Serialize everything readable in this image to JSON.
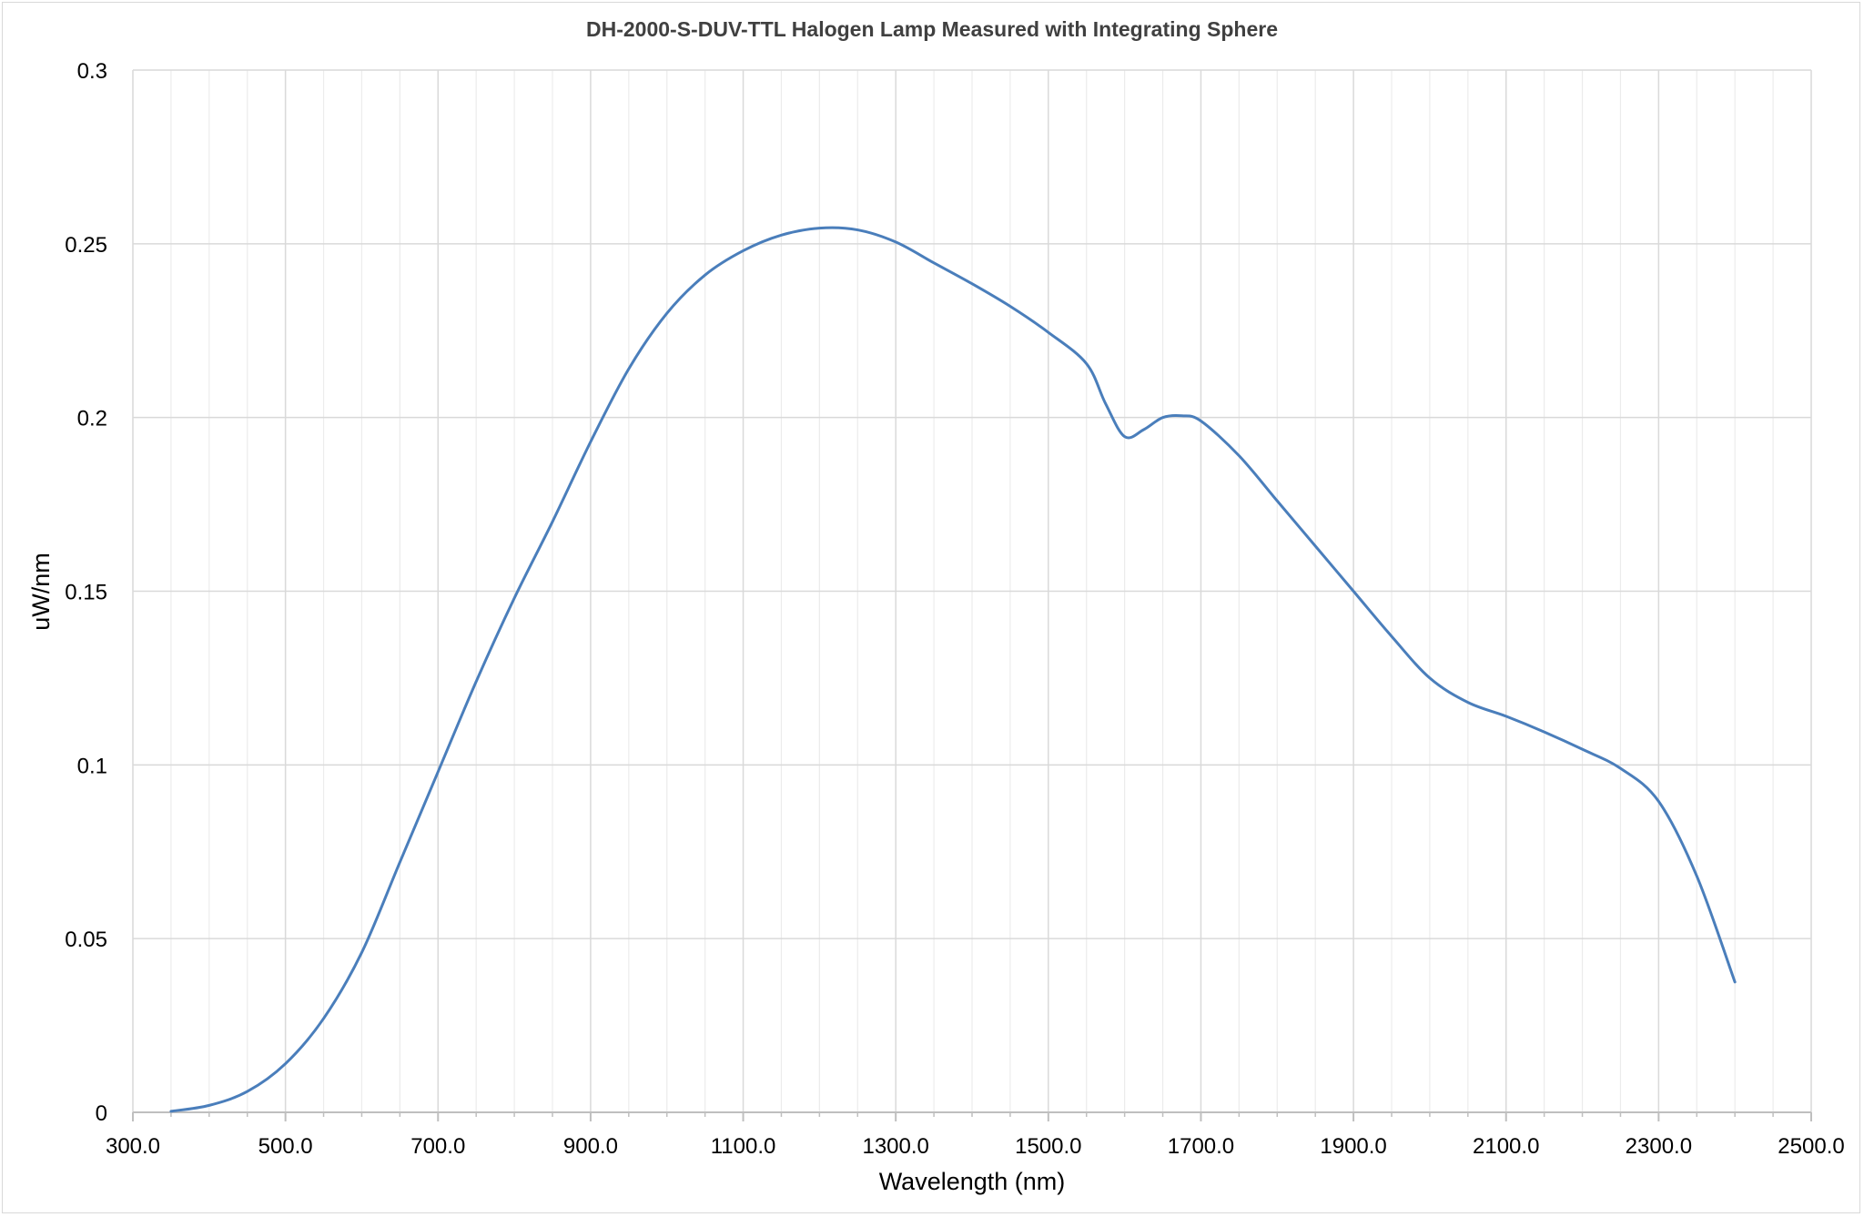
{
  "chart_data": {
    "type": "line",
    "title": "DH-2000-S-DUV-TTL Halogen Lamp Measured with Integrating Sphere",
    "xlabel": "Wavelength (nm)",
    "ylabel": "uW/nm",
    "xlim": [
      300,
      2500
    ],
    "ylim": [
      0,
      0.3
    ],
    "x_ticks": [
      "300.0",
      "500.0",
      "700.0",
      "900.0",
      "1100.0",
      "1300.0",
      "1500.0",
      "1700.0",
      "1900.0",
      "2100.0",
      "2300.0",
      "2500.0"
    ],
    "y_ticks": [
      "0",
      "0.05",
      "0.1",
      "0.15",
      "0.2",
      "0.25",
      "0.3"
    ],
    "grid": true,
    "legend": "none",
    "series": [
      {
        "color": "#4a7ebb",
        "x": [
          350,
          400,
          450,
          500,
          550,
          600,
          650,
          700,
          750,
          800,
          850,
          900,
          950,
          1000,
          1050,
          1100,
          1150,
          1200,
          1250,
          1300,
          1350,
          1400,
          1450,
          1500,
          1550,
          1575,
          1600,
          1625,
          1650,
          1675,
          1700,
          1750,
          1800,
          1850,
          1900,
          1950,
          2000,
          2050,
          2100,
          2150,
          2200,
          2250,
          2300,
          2350,
          2400
        ],
        "y": [
          0.0003,
          0.002,
          0.006,
          0.014,
          0.027,
          0.046,
          0.072,
          0.098,
          0.124,
          0.148,
          0.17,
          0.193,
          0.214,
          0.23,
          0.241,
          0.248,
          0.2525,
          0.2545,
          0.254,
          0.2505,
          0.2445,
          0.2385,
          0.232,
          0.2245,
          0.2155,
          0.204,
          0.1945,
          0.1965,
          0.2,
          0.2005,
          0.199,
          0.189,
          0.176,
          0.163,
          0.15,
          0.137,
          0.125,
          0.118,
          0.114,
          0.1095,
          0.1045,
          0.099,
          0.0895,
          0.068,
          0.0375
        ]
      }
    ]
  }
}
